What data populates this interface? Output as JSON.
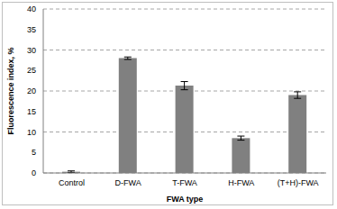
{
  "chart_data": {
    "type": "bar",
    "categories": [
      "Control",
      "D-FWA",
      "T-FWA",
      "H-FWA",
      "(T+H)-FWA"
    ],
    "values": [
      0.3,
      28,
      21.3,
      8.5,
      19
    ],
    "errors": [
      0.2,
      0.3,
      1.0,
      0.5,
      0.8
    ],
    "color": "#808080",
    "xlabel": "FWA type",
    "ylabel": "Fluorescence index, %",
    "ylim": [
      0,
      40
    ],
    "yticks": [
      0,
      5,
      10,
      15,
      20,
      25,
      30,
      35,
      40
    ],
    "grid": true
  }
}
